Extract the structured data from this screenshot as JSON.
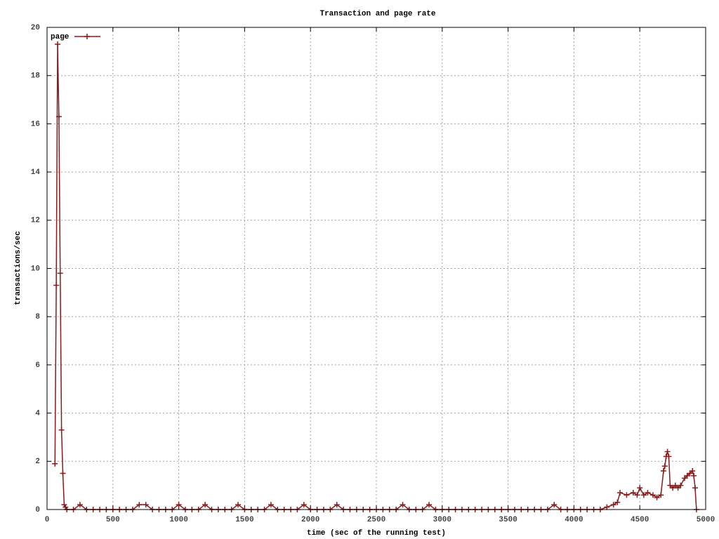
{
  "chart_data": {
    "type": "line",
    "title": "Transaction and page rate",
    "x_label": "time (sec of the running test)",
    "y_label": "transactions/sec",
    "x": [
      60,
      70,
      80,
      90,
      100,
      110,
      120,
      130,
      140,
      150,
      200,
      250,
      300,
      350,
      400,
      450,
      500,
      550,
      600,
      650,
      700,
      750,
      800,
      850,
      900,
      950,
      1000,
      1050,
      1100,
      1150,
      1200,
      1250,
      1300,
      1350,
      1400,
      1450,
      1500,
      1550,
      1600,
      1650,
      1700,
      1750,
      1800,
      1850,
      1900,
      1950,
      2000,
      2050,
      2100,
      2150,
      2200,
      2250,
      2300,
      2350,
      2400,
      2450,
      2500,
      2550,
      2600,
      2650,
      2700,
      2750,
      2800,
      2850,
      2900,
      2950,
      3000,
      3050,
      3100,
      3150,
      3200,
      3250,
      3300,
      3350,
      3400,
      3450,
      3500,
      3550,
      3600,
      3650,
      3700,
      3750,
      3800,
      3850,
      3900,
      3950,
      4000,
      4050,
      4100,
      4150,
      4200,
      4250,
      4300,
      4330,
      4350,
      4400,
      4450,
      4480,
      4500,
      4530,
      4560,
      4600,
      4630,
      4660,
      4680,
      4690,
      4700,
      4710,
      4720,
      4730,
      4750,
      4770,
      4790,
      4810,
      4840,
      4860,
      4880,
      4900,
      4910,
      4920,
      4930
    ],
    "series": [
      {
        "name": "page",
        "color": "#8b1a1a",
        "values": [
          1.9,
          9.3,
          19.3,
          16.3,
          9.8,
          3.3,
          1.5,
          0.2,
          0.1,
          0,
          0,
          0.2,
          0,
          0,
          0,
          0,
          0,
          0,
          0,
          0,
          0.2,
          0.2,
          0,
          0,
          0,
          0,
          0.2,
          0,
          0,
          0,
          0.2,
          0,
          0,
          0,
          0,
          0.2,
          0,
          0,
          0,
          0,
          0.2,
          0,
          0,
          0,
          0,
          0.2,
          0,
          0,
          0,
          0,
          0.2,
          0,
          0,
          0,
          0,
          0,
          0,
          0,
          0,
          0,
          0.2,
          0,
          0,
          0,
          0.2,
          0,
          0,
          0,
          0,
          0,
          0,
          0,
          0,
          0,
          0,
          0,
          0,
          0,
          0,
          0,
          0,
          0,
          0,
          0.2,
          0,
          0,
          0,
          0,
          0,
          0,
          0,
          0.1,
          0.2,
          0.3,
          0.7,
          0.6,
          0.7,
          0.6,
          0.9,
          0.6,
          0.7,
          0.6,
          0.5,
          0.6,
          1.6,
          1.8,
          2.2,
          2.4,
          2.2,
          1.0,
          0.9,
          1.0,
          0.9,
          1.0,
          1.3,
          1.4,
          1.5,
          1.6,
          1.4,
          0.9,
          0
        ]
      }
    ],
    "xlim": [
      0,
      5000
    ],
    "ylim": [
      0,
      20
    ],
    "xticks": [
      0,
      500,
      1000,
      1500,
      2000,
      2500,
      3000,
      3500,
      4000,
      4500,
      5000
    ],
    "yticks": [
      0,
      2,
      4,
      6,
      8,
      10,
      12,
      14,
      16,
      18,
      20
    ],
    "grid": true,
    "legend": "top-left"
  }
}
